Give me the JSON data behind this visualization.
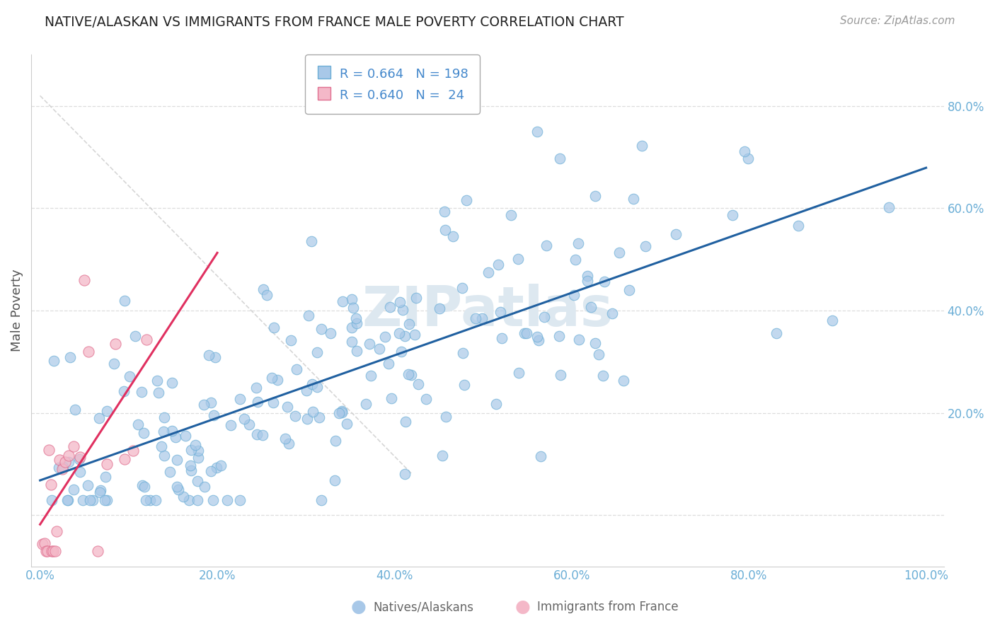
{
  "title": "NATIVE/ALASKAN VS IMMIGRANTS FROM FRANCE MALE POVERTY CORRELATION CHART",
  "source": "Source: ZipAtlas.com",
  "ylabel": "Male Poverty",
  "blue_color": "#a8c8e8",
  "blue_edge_color": "#6baed6",
  "pink_color": "#f4b8c8",
  "pink_edge_color": "#e07090",
  "blue_line_color": "#2060a0",
  "pink_line_color": "#e03060",
  "diag_color": "#cccccc",
  "watermark_color": "#dde8f0",
  "title_color": "#222222",
  "source_color": "#999999",
  "ylabel_color": "#555555",
  "tick_color": "#6baed6",
  "grid_color": "#dddddd",
  "legend_text_color": "#4488cc",
  "legend_r_color": "#4488cc",
  "legend_n_color": "#e05080",
  "bottom_label_color": "#666666"
}
